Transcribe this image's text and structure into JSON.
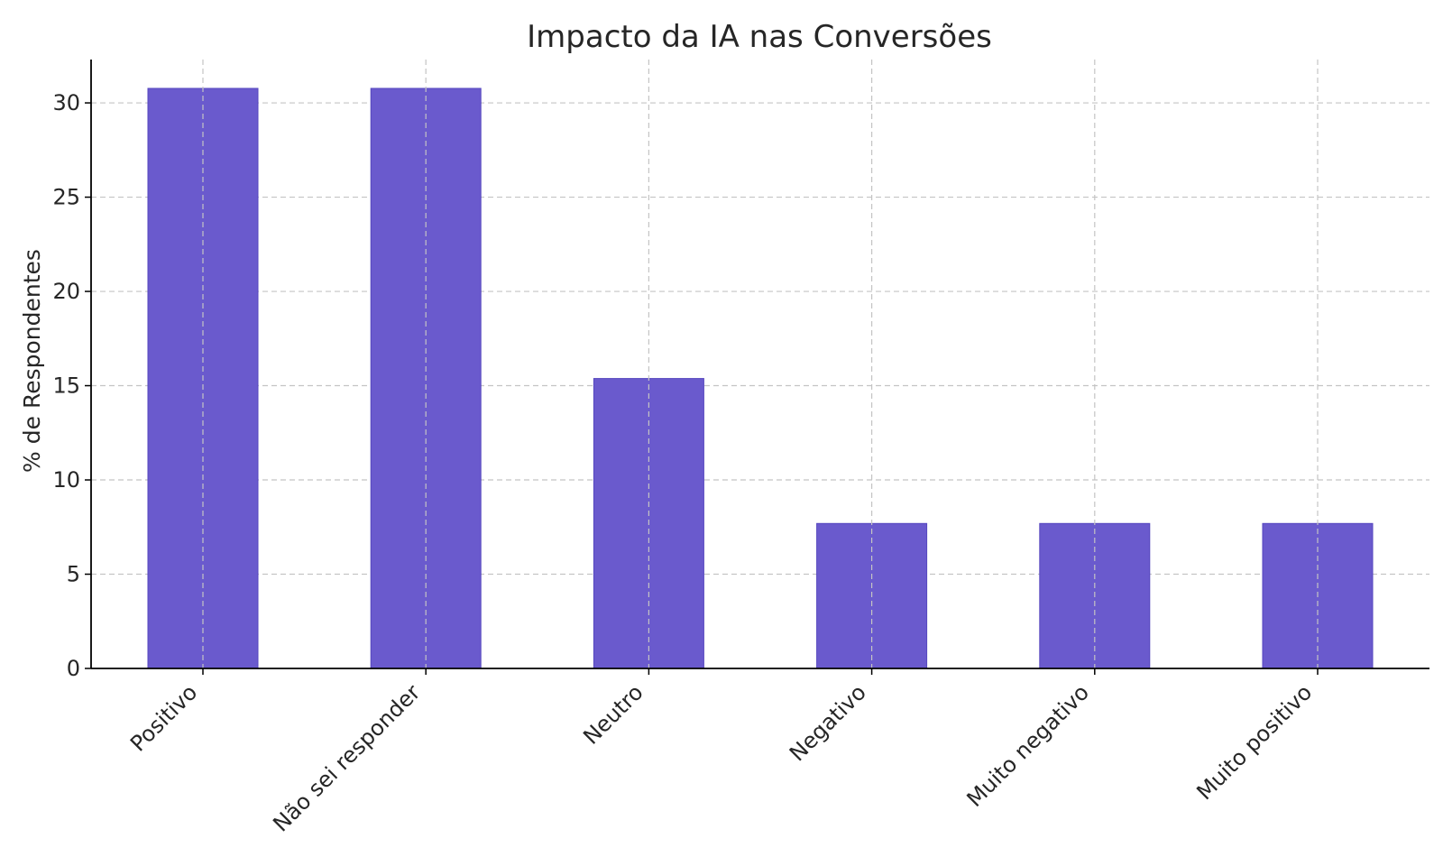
{
  "chart_data": {
    "type": "bar",
    "title": "Impacto da IA nas Conversões",
    "xlabel": "",
    "ylabel": "% de Respondentes",
    "categories": [
      "Positivo",
      "Não sei responder",
      "Neutro",
      "Negativo",
      "Muito negativo",
      "Muito positivo"
    ],
    "values": [
      30.77,
      30.77,
      15.38,
      7.69,
      7.69,
      7.69
    ],
    "ylim": [
      0,
      32.3
    ],
    "yticks": [
      0,
      5,
      10,
      15,
      20,
      25,
      30
    ],
    "grid": true,
    "bar_color": "#6a5acd"
  }
}
